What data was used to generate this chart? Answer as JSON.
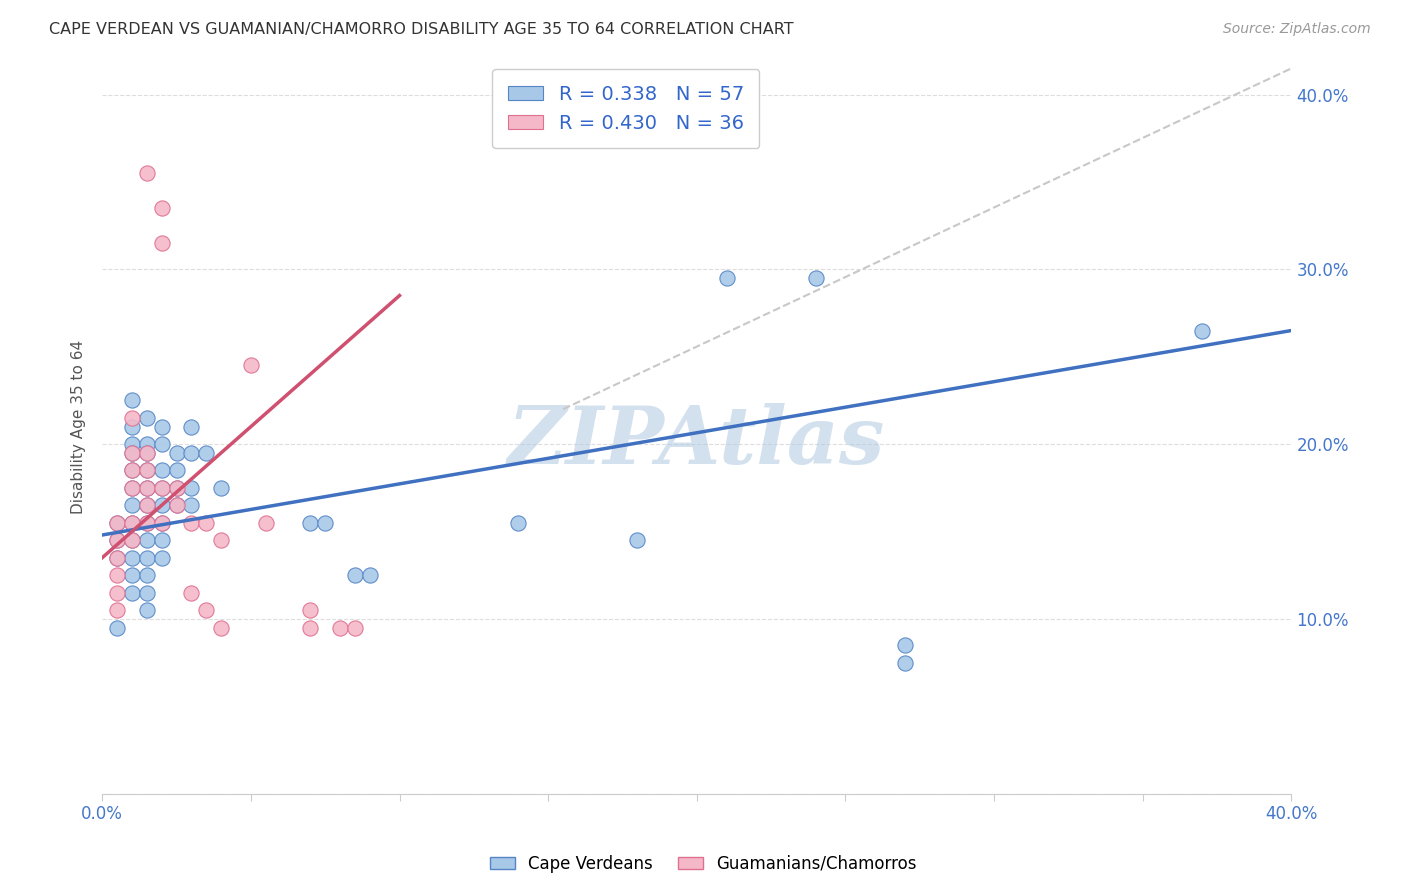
{
  "title": "CAPE VERDEAN VS GUAMANIAN/CHAMORRO DISABILITY AGE 35 TO 64 CORRELATION CHART",
  "source": "Source: ZipAtlas.com",
  "ylabel": "Disability Age 35 to 64",
  "x_min": 0.0,
  "x_max": 0.4,
  "y_min": 0.0,
  "y_max": 0.42,
  "x_ticks": [
    0.0,
    0.05,
    0.1,
    0.15,
    0.2,
    0.25,
    0.3,
    0.35,
    0.4
  ],
  "y_ticks": [
    0.0,
    0.1,
    0.2,
    0.3,
    0.4
  ],
  "y_tick_labels": [
    "",
    "10.0%",
    "20.0%",
    "30.0%",
    "40.0%"
  ],
  "blue_R": 0.338,
  "blue_N": 57,
  "pink_R": 0.43,
  "pink_N": 36,
  "blue_color": "#a8c8e8",
  "pink_color": "#f4b8c8",
  "blue_edge_color": "#5585c5",
  "pink_edge_color": "#e07090",
  "blue_line_color": "#4070c0",
  "pink_line_color": "#d05070",
  "ref_line_color": "#c8c8c8",
  "watermark": "ZIPAtlas",
  "watermark_color": "#b0c8e0",
  "blue_scatter": [
    [
      0.005,
      0.155
    ],
    [
      0.005,
      0.145
    ],
    [
      0.005,
      0.135
    ],
    [
      0.005,
      0.095
    ],
    [
      0.01,
      0.225
    ],
    [
      0.01,
      0.21
    ],
    [
      0.01,
      0.2
    ],
    [
      0.01,
      0.195
    ],
    [
      0.01,
      0.185
    ],
    [
      0.01,
      0.175
    ],
    [
      0.01,
      0.165
    ],
    [
      0.01,
      0.155
    ],
    [
      0.01,
      0.145
    ],
    [
      0.01,
      0.135
    ],
    [
      0.01,
      0.125
    ],
    [
      0.01,
      0.115
    ],
    [
      0.015,
      0.215
    ],
    [
      0.015,
      0.2
    ],
    [
      0.015,
      0.195
    ],
    [
      0.015,
      0.185
    ],
    [
      0.015,
      0.175
    ],
    [
      0.015,
      0.165
    ],
    [
      0.015,
      0.155
    ],
    [
      0.015,
      0.145
    ],
    [
      0.015,
      0.135
    ],
    [
      0.015,
      0.125
    ],
    [
      0.015,
      0.115
    ],
    [
      0.015,
      0.105
    ],
    [
      0.02,
      0.21
    ],
    [
      0.02,
      0.2
    ],
    [
      0.02,
      0.185
    ],
    [
      0.02,
      0.175
    ],
    [
      0.02,
      0.165
    ],
    [
      0.02,
      0.155
    ],
    [
      0.02,
      0.145
    ],
    [
      0.02,
      0.135
    ],
    [
      0.025,
      0.195
    ],
    [
      0.025,
      0.185
    ],
    [
      0.025,
      0.175
    ],
    [
      0.025,
      0.165
    ],
    [
      0.03,
      0.21
    ],
    [
      0.03,
      0.195
    ],
    [
      0.03,
      0.175
    ],
    [
      0.03,
      0.165
    ],
    [
      0.035,
      0.195
    ],
    [
      0.04,
      0.175
    ],
    [
      0.07,
      0.155
    ],
    [
      0.075,
      0.155
    ],
    [
      0.085,
      0.125
    ],
    [
      0.09,
      0.125
    ],
    [
      0.14,
      0.155
    ],
    [
      0.18,
      0.145
    ],
    [
      0.21,
      0.295
    ],
    [
      0.24,
      0.295
    ],
    [
      0.27,
      0.075
    ],
    [
      0.27,
      0.085
    ],
    [
      0.37,
      0.265
    ]
  ],
  "pink_scatter": [
    [
      0.005,
      0.155
    ],
    [
      0.005,
      0.145
    ],
    [
      0.005,
      0.135
    ],
    [
      0.005,
      0.125
    ],
    [
      0.005,
      0.115
    ],
    [
      0.005,
      0.105
    ],
    [
      0.01,
      0.215
    ],
    [
      0.01,
      0.195
    ],
    [
      0.01,
      0.185
    ],
    [
      0.01,
      0.175
    ],
    [
      0.01,
      0.155
    ],
    [
      0.01,
      0.145
    ],
    [
      0.015,
      0.355
    ],
    [
      0.015,
      0.195
    ],
    [
      0.015,
      0.185
    ],
    [
      0.015,
      0.175
    ],
    [
      0.015,
      0.165
    ],
    [
      0.015,
      0.155
    ],
    [
      0.02,
      0.335
    ],
    [
      0.02,
      0.315
    ],
    [
      0.02,
      0.175
    ],
    [
      0.02,
      0.155
    ],
    [
      0.025,
      0.175
    ],
    [
      0.025,
      0.165
    ],
    [
      0.03,
      0.155
    ],
    [
      0.03,
      0.115
    ],
    [
      0.035,
      0.155
    ],
    [
      0.035,
      0.105
    ],
    [
      0.04,
      0.145
    ],
    [
      0.04,
      0.095
    ],
    [
      0.05,
      0.245
    ],
    [
      0.055,
      0.155
    ],
    [
      0.07,
      0.105
    ],
    [
      0.07,
      0.095
    ],
    [
      0.08,
      0.095
    ],
    [
      0.085,
      0.095
    ]
  ],
  "blue_trend_x": [
    0.0,
    0.4
  ],
  "blue_trend_y": [
    0.148,
    0.265
  ],
  "pink_trend_x": [
    0.0,
    0.1
  ],
  "pink_trend_y": [
    0.135,
    0.285
  ],
  "ref_trend_x": [
    0.155,
    0.4
  ],
  "ref_trend_y": [
    0.22,
    0.415
  ]
}
